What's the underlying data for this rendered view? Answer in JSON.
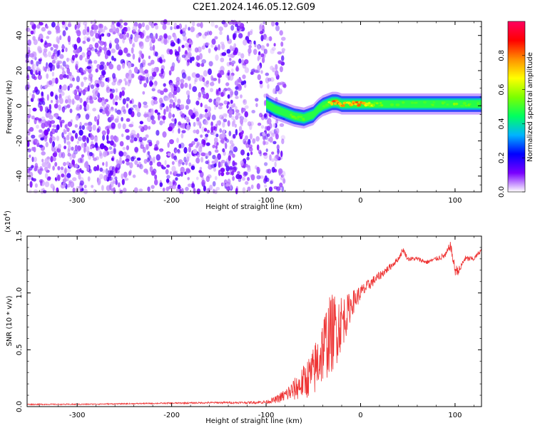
{
  "figure_title": "C2E1.2024.146.05.12.G09",
  "chart_data": [
    {
      "type": "heatmap",
      "title": "C2E1.2024.146.05.12.G09",
      "xlabel": "Height of straight line (km)",
      "ylabel": "Frequency (Hz)",
      "xlim": [
        -353,
        128
      ],
      "ylim": [
        -49,
        48
      ],
      "x_ticks": [
        "-300",
        "-200",
        "-100",
        "0",
        "100"
      ],
      "y_ticks": [
        "-40",
        "-20",
        "0",
        "20",
        "40"
      ],
      "colorbar": {
        "label": "Normalized spectral amplitude",
        "range": [
          0.0,
          1.0
        ],
        "ticks": [
          "0.0",
          "0.2",
          "0.4",
          "0.6",
          "0.8"
        ],
        "colors": [
          "#ffffff",
          "#7a00ff",
          "#0000ff",
          "#00b4ff",
          "#00ff60",
          "#7cff00",
          "#ffff00",
          "#ff9000",
          "#ff0000",
          "#ff0060"
        ]
      },
      "signal_trace": {
        "x": [
          -100,
          -90,
          -80,
          -70,
          -60,
          -50,
          -45,
          -40,
          -35,
          -30,
          -25,
          -20,
          -10,
          0,
          20,
          40,
          60,
          80,
          100,
          128
        ],
        "y": [
          1,
          -2,
          -4,
          -6,
          -7,
          -5,
          -2,
          0,
          1,
          2,
          2,
          1,
          1,
          1,
          1,
          1,
          1,
          1,
          1,
          1
        ],
        "amplitude": [
          0.3,
          0.35,
          0.45,
          0.5,
          0.45,
          0.35,
          0.3,
          0.45,
          0.5,
          0.75,
          0.8,
          0.75,
          0.7,
          0.8,
          0.5,
          0.45,
          0.45,
          0.45,
          0.5,
          0.45
        ]
      },
      "noise_region_x": [
        -353,
        -80
      ]
    },
    {
      "type": "line",
      "xlabel": "Height of straight line (km)",
      "ylabel": "SNR (10 * v/v)",
      "multiplier": "(x10",
      "multiplier_exp": "4",
      "multiplier_close": ")",
      "xlim": [
        -353,
        128
      ],
      "ylim": [
        0.0,
        1.5
      ],
      "x_ticks": [
        "-300",
        "-200",
        "-100",
        "0",
        "100"
      ],
      "y_ticks": [
        "0.0",
        "0.5",
        "1.0",
        "1.5"
      ],
      "color": "#ee3333",
      "x": [
        -353,
        -300,
        -250,
        -200,
        -150,
        -120,
        -100,
        -90,
        -80,
        -70,
        -60,
        -50,
        -45,
        -40,
        -35,
        -30,
        -25,
        -20,
        -15,
        -10,
        -5,
        0,
        10,
        20,
        30,
        40,
        45,
        50,
        60,
        70,
        80,
        90,
        95,
        100,
        105,
        110,
        120,
        128
      ],
      "y": [
        0.02,
        0.02,
        0.025,
        0.03,
        0.035,
        0.035,
        0.04,
        0.06,
        0.1,
        0.15,
        0.22,
        0.3,
        0.4,
        0.5,
        0.6,
        0.65,
        0.7,
        0.75,
        0.8,
        0.9,
        0.95,
        1.0,
        1.08,
        1.15,
        1.22,
        1.3,
        1.38,
        1.3,
        1.3,
        1.27,
        1.3,
        1.33,
        1.42,
        1.2,
        1.2,
        1.3,
        1.3,
        1.38
      ],
      "noise_amplitude": [
        0.005,
        0.005,
        0.005,
        0.006,
        0.008,
        0.01,
        0.015,
        0.03,
        0.06,
        0.1,
        0.15,
        0.22,
        0.28,
        0.3,
        0.35,
        0.35,
        0.32,
        0.25,
        0.18,
        0.12,
        0.09,
        0.07,
        0.05,
        0.04,
        0.03,
        0.025,
        0.025,
        0.02,
        0.02,
        0.02,
        0.02,
        0.03,
        0.04,
        0.05,
        0.04,
        0.03,
        0.02,
        0.02
      ]
    }
  ]
}
